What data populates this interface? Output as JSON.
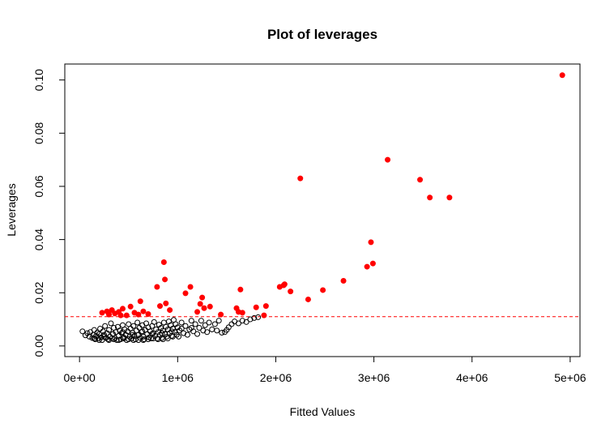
{
  "chart_data": {
    "type": "scatter",
    "title": "Plot of leverages",
    "xlabel": "Fitted Values",
    "ylabel": "Leverages",
    "xlim": [
      -150000,
      5100000
    ],
    "ylim": [
      -0.004,
      0.106
    ],
    "x_ticks": [
      0,
      1000000,
      2000000,
      3000000,
      4000000,
      5000000
    ],
    "x_tick_labels": [
      "0e+00",
      "1e+06",
      "2e+06",
      "3e+06",
      "4e+06",
      "5e+06"
    ],
    "y_ticks": [
      0.0,
      0.02,
      0.04,
      0.06,
      0.08,
      0.1
    ],
    "y_tick_labels": [
      "0.00",
      "0.02",
      "0.04",
      "0.06",
      "0.08",
      "0.10"
    ],
    "threshold": 0.011,
    "threshold_color": "#ff0000",
    "grid": false,
    "legend": "none",
    "series": [
      {
        "style": "open-circle",
        "color": "#000000",
        "points": [
          [
            30000,
            0.0055
          ],
          [
            60000,
            0.004
          ],
          [
            80000,
            0.0048
          ],
          [
            100000,
            0.0035
          ],
          [
            110000,
            0.0052
          ],
          [
            130000,
            0.003
          ],
          [
            140000,
            0.0042
          ],
          [
            150000,
            0.006
          ],
          [
            160000,
            0.0025
          ],
          [
            170000,
            0.0038
          ],
          [
            180000,
            0.005
          ],
          [
            190000,
            0.0028
          ],
          [
            200000,
            0.0045
          ],
          [
            210000,
            0.0065
          ],
          [
            220000,
            0.0032
          ],
          [
            230000,
            0.0022
          ],
          [
            240000,
            0.0055
          ],
          [
            250000,
            0.0042
          ],
          [
            260000,
            0.0075
          ],
          [
            270000,
            0.003
          ],
          [
            280000,
            0.0048
          ],
          [
            290000,
            0.0025
          ],
          [
            300000,
            0.006
          ],
          [
            310000,
            0.0035
          ],
          [
            320000,
            0.0085
          ],
          [
            330000,
            0.0028
          ],
          [
            340000,
            0.0045
          ],
          [
            350000,
            0.0068
          ],
          [
            360000,
            0.003
          ],
          [
            370000,
            0.0052
          ],
          [
            380000,
            0.0022
          ],
          [
            390000,
            0.0072
          ],
          [
            400000,
            0.0038
          ],
          [
            410000,
            0.0058
          ],
          [
            420000,
            0.0025
          ],
          [
            430000,
            0.0048
          ],
          [
            440000,
            0.0078
          ],
          [
            450000,
            0.0032
          ],
          [
            460000,
            0.0062
          ],
          [
            470000,
            0.0042
          ],
          [
            480000,
            0.0022
          ],
          [
            490000,
            0.0055
          ],
          [
            500000,
            0.0082
          ],
          [
            510000,
            0.0035
          ],
          [
            520000,
            0.0065
          ],
          [
            530000,
            0.0028
          ],
          [
            540000,
            0.005
          ],
          [
            550000,
            0.0075
          ],
          [
            560000,
            0.0038
          ],
          [
            570000,
            0.0025
          ],
          [
            580000,
            0.0058
          ],
          [
            590000,
            0.0088
          ],
          [
            600000,
            0.0042
          ],
          [
            610000,
            0.0068
          ],
          [
            620000,
            0.003
          ],
          [
            630000,
            0.0052
          ],
          [
            640000,
            0.0078
          ],
          [
            650000,
            0.0035
          ],
          [
            660000,
            0.0025
          ],
          [
            670000,
            0.006
          ],
          [
            680000,
            0.0085
          ],
          [
            690000,
            0.0045
          ],
          [
            700000,
            0.007
          ],
          [
            710000,
            0.0032
          ],
          [
            720000,
            0.0055
          ],
          [
            730000,
            0.0028
          ],
          [
            740000,
            0.0075
          ],
          [
            750000,
            0.0048
          ],
          [
            760000,
            0.009
          ],
          [
            770000,
            0.0038
          ],
          [
            780000,
            0.0062
          ],
          [
            790000,
            0.0028
          ],
          [
            800000,
            0.0052
          ],
          [
            810000,
            0.008
          ],
          [
            820000,
            0.0042
          ],
          [
            830000,
            0.0068
          ],
          [
            840000,
            0.003
          ],
          [
            850000,
            0.0058
          ],
          [
            860000,
            0.0088
          ],
          [
            870000,
            0.0045
          ],
          [
            880000,
            0.0072
          ],
          [
            890000,
            0.0035
          ],
          [
            900000,
            0.0062
          ],
          [
            910000,
            0.0092
          ],
          [
            920000,
            0.0048
          ],
          [
            930000,
            0.0078
          ],
          [
            940000,
            0.0038
          ],
          [
            950000,
            0.0065
          ],
          [
            960000,
            0.0098
          ],
          [
            970000,
            0.0052
          ],
          [
            980000,
            0.0082
          ],
          [
            990000,
            0.0042
          ],
          [
            1000000,
            0.007
          ],
          [
            1010000,
            0.0035
          ],
          [
            1020000,
            0.0058
          ],
          [
            1040000,
            0.0088
          ],
          [
            1060000,
            0.0048
          ],
          [
            1080000,
            0.0075
          ],
          [
            1100000,
            0.0042
          ],
          [
            1120000,
            0.0062
          ],
          [
            1140000,
            0.0095
          ],
          [
            1160000,
            0.0055
          ],
          [
            1180000,
            0.0082
          ],
          [
            1200000,
            0.0045
          ],
          [
            1220000,
            0.0068
          ],
          [
            1240000,
            0.0095
          ],
          [
            1260000,
            0.0058
          ],
          [
            1280000,
            0.0078
          ],
          [
            1300000,
            0.0052
          ],
          [
            1320000,
            0.0088
          ],
          [
            1350000,
            0.0062
          ],
          [
            1380000,
            0.0082
          ],
          [
            1400000,
            0.0058
          ],
          [
            1420000,
            0.0095
          ],
          [
            1450000,
            0.005
          ],
          [
            1480000,
            0.0052
          ],
          [
            1500000,
            0.006
          ],
          [
            1520000,
            0.007
          ],
          [
            1550000,
            0.0082
          ],
          [
            1580000,
            0.0092
          ],
          [
            1620000,
            0.0085
          ],
          [
            1660000,
            0.0095
          ],
          [
            1700000,
            0.009
          ],
          [
            1740000,
            0.01
          ],
          [
            1780000,
            0.0105
          ],
          [
            1820000,
            0.0108
          ],
          [
            150000,
            0.0028
          ],
          [
            200000,
            0.0022
          ],
          [
            250000,
            0.0035
          ],
          [
            300000,
            0.0022
          ],
          [
            350000,
            0.0025
          ],
          [
            400000,
            0.0022
          ],
          [
            450000,
            0.0028
          ],
          [
            500000,
            0.0025
          ],
          [
            550000,
            0.0022
          ],
          [
            600000,
            0.0022
          ],
          [
            650000,
            0.0022
          ],
          [
            700000,
            0.0025
          ],
          [
            750000,
            0.0028
          ],
          [
            800000,
            0.0025
          ],
          [
            850000,
            0.0025
          ],
          [
            900000,
            0.0028
          ],
          [
            950000,
            0.0035
          ],
          [
            340000,
            0.0045
          ],
          [
            440000,
            0.0052
          ],
          [
            540000,
            0.0042
          ],
          [
            640000,
            0.0055
          ],
          [
            740000,
            0.0045
          ],
          [
            840000,
            0.0048
          ],
          [
            940000,
            0.0055
          ],
          [
            1040000,
            0.0065
          ],
          [
            1140000,
            0.0068
          ]
        ]
      },
      {
        "style": "filled-circle",
        "color": "#ff0000",
        "points": [
          [
            230000,
            0.0125
          ],
          [
            280000,
            0.013
          ],
          [
            300000,
            0.0118
          ],
          [
            330000,
            0.0135
          ],
          [
            360000,
            0.0122
          ],
          [
            400000,
            0.0128
          ],
          [
            420000,
            0.0115
          ],
          [
            440000,
            0.014
          ],
          [
            480000,
            0.0115
          ],
          [
            520000,
            0.0148
          ],
          [
            560000,
            0.0125
          ],
          [
            600000,
            0.0118
          ],
          [
            620000,
            0.0168
          ],
          [
            650000,
            0.013
          ],
          [
            700000,
            0.012
          ],
          [
            790000,
            0.0222
          ],
          [
            820000,
            0.015
          ],
          [
            860000,
            0.0315
          ],
          [
            870000,
            0.025
          ],
          [
            880000,
            0.016
          ],
          [
            920000,
            0.0135
          ],
          [
            1080000,
            0.0198
          ],
          [
            1130000,
            0.0222
          ],
          [
            1200000,
            0.0128
          ],
          [
            1230000,
            0.0158
          ],
          [
            1250000,
            0.0182
          ],
          [
            1270000,
            0.0142
          ],
          [
            1330000,
            0.0148
          ],
          [
            1440000,
            0.0118
          ],
          [
            1600000,
            0.0142
          ],
          [
            1620000,
            0.0128
          ],
          [
            1640000,
            0.0212
          ],
          [
            1660000,
            0.0125
          ],
          [
            1800000,
            0.0145
          ],
          [
            1880000,
            0.0115
          ],
          [
            1900000,
            0.015
          ],
          [
            2040000,
            0.0222
          ],
          [
            2080000,
            0.0228
          ],
          [
            2090000,
            0.0232
          ],
          [
            2150000,
            0.0205
          ],
          [
            2250000,
            0.063
          ],
          [
            2330000,
            0.0175
          ],
          [
            2480000,
            0.021
          ],
          [
            2690000,
            0.0245
          ],
          [
            2930000,
            0.0298
          ],
          [
            2970000,
            0.039
          ],
          [
            2990000,
            0.031
          ],
          [
            3140000,
            0.07
          ],
          [
            3470000,
            0.0625
          ],
          [
            3570000,
            0.0558
          ],
          [
            3770000,
            0.0558
          ],
          [
            4920000,
            0.1018
          ]
        ]
      }
    ]
  }
}
